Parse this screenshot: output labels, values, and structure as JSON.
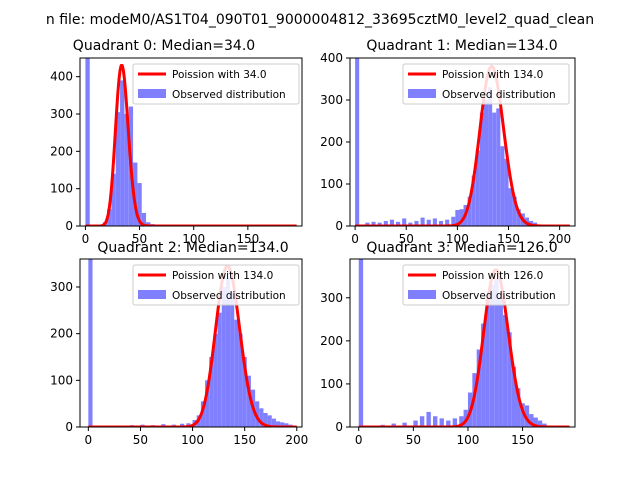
{
  "figure_title": "n file: modeM0/AS1T04_090T01_9000004812_33695cztM0_level2_quad_clean",
  "colors": {
    "poisson": "#ff0000",
    "observed": "#8080ff",
    "axes": "#000000"
  },
  "chart_data": [
    {
      "type": "bar",
      "title": "Quadrant 0: Median=34.0",
      "xlim": [
        -5,
        200
      ],
      "ylim": [
        0,
        450
      ],
      "xticks": [
        0,
        50,
        100,
        150
      ],
      "yticks": [
        0,
        100,
        200,
        300,
        400
      ],
      "bin_width": 4,
      "legend": {
        "line": "Poission with 34.0",
        "bars": "Observed distribution",
        "loc": "upper right"
      },
      "poisson_mean": 34,
      "poisson_peak": 430,
      "bins": [
        {
          "x": 0,
          "count": 450
        },
        {
          "x": 4,
          "count": 2
        },
        {
          "x": 8,
          "count": 2
        },
        {
          "x": 12,
          "count": 3
        },
        {
          "x": 16,
          "count": 10
        },
        {
          "x": 20,
          "count": 45
        },
        {
          "x": 24,
          "count": 140
        },
        {
          "x": 28,
          "count": 305
        },
        {
          "x": 32,
          "count": 390
        },
        {
          "x": 36,
          "count": 300
        },
        {
          "x": 40,
          "count": 320
        },
        {
          "x": 44,
          "count": 170
        },
        {
          "x": 48,
          "count": 115
        },
        {
          "x": 52,
          "count": 35
        },
        {
          "x": 56,
          "count": 10
        },
        {
          "x": 60,
          "count": 5
        },
        {
          "x": 64,
          "count": 3
        },
        {
          "x": 68,
          "count": 2
        },
        {
          "x": 72,
          "count": 2
        },
        {
          "x": 76,
          "count": 1
        }
      ]
    },
    {
      "type": "bar",
      "title": "Quadrant 1: Median=134.0",
      "xlim": [
        -5,
        215
      ],
      "ylim": [
        0,
        400
      ],
      "xticks": [
        0,
        50,
        100,
        150,
        200
      ],
      "yticks": [
        0,
        100,
        200,
        300,
        400
      ],
      "bin_width": 4,
      "legend": {
        "line": "Poission with 134.0",
        "bars": "Observed distribution",
        "loc": "upper right"
      },
      "poisson_mean": 134,
      "poisson_peak": 380,
      "bins": [
        {
          "x": 0,
          "count": 400
        },
        {
          "x": 10,
          "count": 8
        },
        {
          "x": 16,
          "count": 10
        },
        {
          "x": 22,
          "count": 8
        },
        {
          "x": 28,
          "count": 12
        },
        {
          "x": 34,
          "count": 15
        },
        {
          "x": 40,
          "count": 10
        },
        {
          "x": 46,
          "count": 18
        },
        {
          "x": 52,
          "count": 8
        },
        {
          "x": 58,
          "count": 12
        },
        {
          "x": 64,
          "count": 20
        },
        {
          "x": 70,
          "count": 15
        },
        {
          "x": 76,
          "count": 18
        },
        {
          "x": 82,
          "count": 12
        },
        {
          "x": 88,
          "count": 15
        },
        {
          "x": 94,
          "count": 22
        },
        {
          "x": 98,
          "count": 38
        },
        {
          "x": 102,
          "count": 40
        },
        {
          "x": 106,
          "count": 50
        },
        {
          "x": 110,
          "count": 70
        },
        {
          "x": 114,
          "count": 120
        },
        {
          "x": 118,
          "count": 180
        },
        {
          "x": 122,
          "count": 270
        },
        {
          "x": 126,
          "count": 300
        },
        {
          "x": 130,
          "count": 330
        },
        {
          "x": 134,
          "count": 270
        },
        {
          "x": 138,
          "count": 280
        },
        {
          "x": 142,
          "count": 190
        },
        {
          "x": 146,
          "count": 160
        },
        {
          "x": 150,
          "count": 90
        },
        {
          "x": 154,
          "count": 70
        },
        {
          "x": 158,
          "count": 40
        },
        {
          "x": 162,
          "count": 30
        },
        {
          "x": 166,
          "count": 20
        },
        {
          "x": 170,
          "count": 12
        },
        {
          "x": 174,
          "count": 8
        }
      ]
    },
    {
      "type": "bar",
      "title": "Quadrant 2: Median=134.0",
      "xlim": [
        -8,
        205
      ],
      "ylim": [
        0,
        360
      ],
      "xticks": [
        0,
        50,
        100,
        150,
        200
      ],
      "yticks": [
        0,
        100,
        200,
        300
      ],
      "bin_width": 4,
      "legend": {
        "line": "Poission with 134.0",
        "bars": "Observed distribution",
        "loc": "upper right"
      },
      "poisson_mean": 134,
      "poisson_peak": 345,
      "bins": [
        {
          "x": 0,
          "count": 360
        },
        {
          "x": 30,
          "count": 3
        },
        {
          "x": 40,
          "count": 4
        },
        {
          "x": 50,
          "count": 5
        },
        {
          "x": 60,
          "count": 4
        },
        {
          "x": 70,
          "count": 6
        },
        {
          "x": 80,
          "count": 5
        },
        {
          "x": 88,
          "count": 7
        },
        {
          "x": 94,
          "count": 8
        },
        {
          "x": 100,
          "count": 15
        },
        {
          "x": 104,
          "count": 25
        },
        {
          "x": 108,
          "count": 55
        },
        {
          "x": 112,
          "count": 100
        },
        {
          "x": 116,
          "count": 150
        },
        {
          "x": 120,
          "count": 200
        },
        {
          "x": 124,
          "count": 245
        },
        {
          "x": 128,
          "count": 300
        },
        {
          "x": 132,
          "count": 320
        },
        {
          "x": 136,
          "count": 290
        },
        {
          "x": 140,
          "count": 230
        },
        {
          "x": 144,
          "count": 200
        },
        {
          "x": 148,
          "count": 150
        },
        {
          "x": 152,
          "count": 110
        },
        {
          "x": 156,
          "count": 80
        },
        {
          "x": 160,
          "count": 55
        },
        {
          "x": 164,
          "count": 40
        },
        {
          "x": 168,
          "count": 30
        },
        {
          "x": 172,
          "count": 25
        },
        {
          "x": 176,
          "count": 18
        },
        {
          "x": 180,
          "count": 12
        },
        {
          "x": 184,
          "count": 10
        },
        {
          "x": 188,
          "count": 8
        },
        {
          "x": 192,
          "count": 5
        }
      ]
    },
    {
      "type": "bar",
      "title": "Quadrant 3: Median=126.0",
      "xlim": [
        -8,
        198
      ],
      "ylim": [
        0,
        390
      ],
      "xticks": [
        0,
        50,
        100,
        150
      ],
      "yticks": [
        0,
        100,
        200,
        300
      ],
      "bin_width": 4,
      "legend": {
        "line": "Poission with 126.0",
        "bars": "Observed distribution",
        "loc": "upper right"
      },
      "poisson_mean": 126,
      "poisson_peak": 365,
      "bins": [
        {
          "x": 0,
          "count": 390
        },
        {
          "x": 20,
          "count": 5
        },
        {
          "x": 30,
          "count": 8
        },
        {
          "x": 40,
          "count": 10
        },
        {
          "x": 50,
          "count": 15
        },
        {
          "x": 56,
          "count": 25
        },
        {
          "x": 62,
          "count": 35
        },
        {
          "x": 68,
          "count": 25
        },
        {
          "x": 74,
          "count": 20
        },
        {
          "x": 80,
          "count": 15
        },
        {
          "x": 86,
          "count": 20
        },
        {
          "x": 92,
          "count": 25
        },
        {
          "x": 96,
          "count": 40
        },
        {
          "x": 100,
          "count": 80
        },
        {
          "x": 104,
          "count": 125
        },
        {
          "x": 108,
          "count": 180
        },
        {
          "x": 112,
          "count": 240
        },
        {
          "x": 116,
          "count": 300
        },
        {
          "x": 120,
          "count": 330
        },
        {
          "x": 124,
          "count": 345
        },
        {
          "x": 128,
          "count": 300
        },
        {
          "x": 132,
          "count": 260
        },
        {
          "x": 136,
          "count": 220
        },
        {
          "x": 140,
          "count": 140
        },
        {
          "x": 144,
          "count": 90
        },
        {
          "x": 148,
          "count": 55
        },
        {
          "x": 152,
          "count": 50
        },
        {
          "x": 156,
          "count": 30
        },
        {
          "x": 160,
          "count": 22
        },
        {
          "x": 164,
          "count": 15
        },
        {
          "x": 168,
          "count": 8
        }
      ]
    }
  ]
}
